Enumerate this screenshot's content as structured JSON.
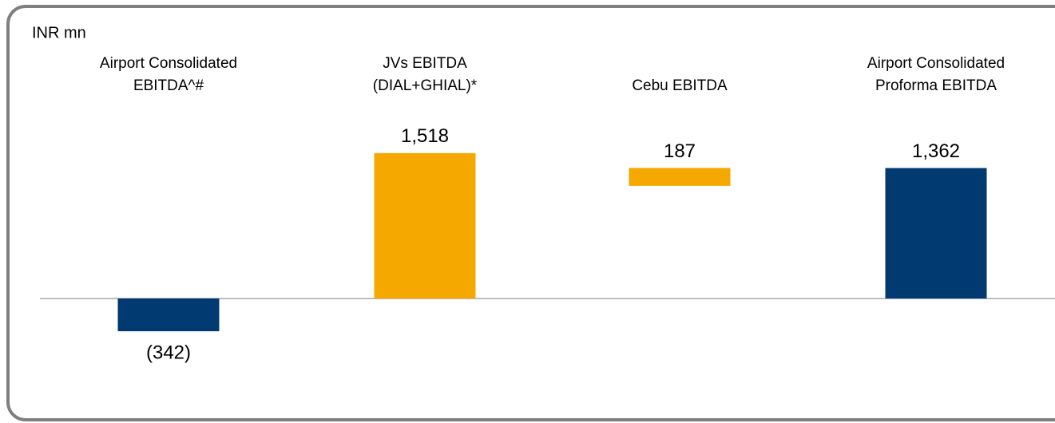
{
  "chart_data": {
    "type": "waterfall",
    "unit_label": "INR mn",
    "categories": [
      [
        "Airport Consolidated",
        "EBITDA^#"
      ],
      [
        "JVs EBITDA",
        "(DIAL+GHIAL)*"
      ],
      [
        "Cebu EBITDA"
      ],
      [
        "Airport Consolidated",
        "Proforma EBITDA"
      ]
    ],
    "values": [
      -342,
      1518,
      187,
      1362
    ],
    "value_labels": [
      "(342)",
      "1,518",
      "187",
      "1,362"
    ],
    "measure": [
      "total",
      "absolute",
      "relative",
      "total"
    ],
    "colors": [
      "#003a70",
      "#f5a800",
      "#f5a800",
      "#003a70"
    ],
    "ylim": [
      -800,
      2000
    ]
  }
}
